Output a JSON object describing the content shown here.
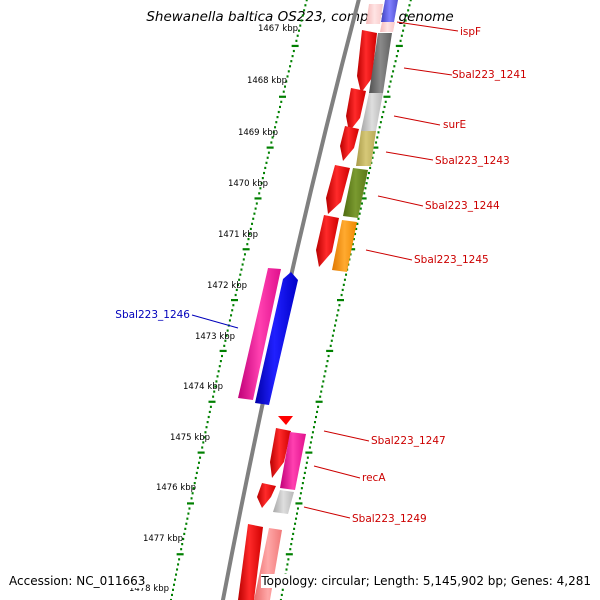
{
  "title": "Shewanella baltica OS223, complete genome",
  "accession": "Accession: NC_011663",
  "topology": "Topology: circular; Length: 5,145,902 bp; Genes: 4,281",
  "ticks": [
    {
      "label": "1467 kbp",
      "kbp": 1467
    },
    {
      "label": "1468 kbp",
      "kbp": 1468
    },
    {
      "label": "1469 kbp",
      "kbp": 1469
    },
    {
      "label": "1470 kbp",
      "kbp": 1470
    },
    {
      "label": "1471 kbp",
      "kbp": 1471
    },
    {
      "label": "1472 kbp",
      "kbp": 1472
    },
    {
      "label": "1473 kbp",
      "kbp": 1473
    },
    {
      "label": "1474 kbp",
      "kbp": 1474
    },
    {
      "label": "1475 kbp",
      "kbp": 1475
    },
    {
      "label": "1476 kbp",
      "kbp": 1476
    },
    {
      "label": "1477 kbp",
      "kbp": 1477
    },
    {
      "label": "1478 kbp",
      "kbp": 1478
    }
  ],
  "gene_labels": [
    {
      "text": "ispF",
      "color": "#cc0000"
    },
    {
      "text": "Sbal223_1241",
      "color": "#cc0000"
    },
    {
      "text": "surE",
      "color": "#cc0000"
    },
    {
      "text": "Sbal223_1243",
      "color": "#cc0000"
    },
    {
      "text": "Sbal223_1244",
      "color": "#cc0000"
    },
    {
      "text": "Sbal223_1245",
      "color": "#cc0000"
    },
    {
      "text": "Sbal223_1246",
      "color": "#0000bb"
    },
    {
      "text": "Sbal223_1247",
      "color": "#cc0000"
    },
    {
      "text": "recA",
      "color": "#cc0000"
    },
    {
      "text": "Sbal223_1249",
      "color": "#cc0000"
    }
  ],
  "colors": {
    "forward_strand": "#ff0000",
    "reverse_strand": "#0000ff",
    "backbone": "#808080",
    "tick": "#008000",
    "label_forward": "#cc0000",
    "label_reverse": "#0000bb"
  }
}
